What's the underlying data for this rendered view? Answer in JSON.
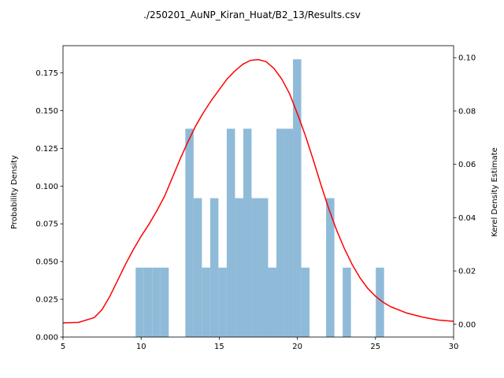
{
  "chart_data": {
    "type": "bar",
    "title": "./250201_AuNP_Kiran_Huat/B2_13/Results.csv",
    "xlabel": "",
    "ylabel": "Probability Density",
    "y2label": "Kerel Density Estimate",
    "xlim": [
      5,
      30
    ],
    "ylim": [
      0,
      0.193
    ],
    "y2lim": [
      -0.0048,
      0.1045
    ],
    "x_ticks": [
      5,
      10,
      15,
      20,
      25,
      30
    ],
    "y_ticks": [
      0.0,
      0.025,
      0.05,
      0.075,
      0.1,
      0.125,
      0.15,
      0.175
    ],
    "y_tick_labels": [
      "0.000",
      "0.025",
      "0.050",
      "0.075",
      "0.100",
      "0.125",
      "0.150",
      "0.175"
    ],
    "y2_ticks": [
      0.0,
      0.02,
      0.04,
      0.06,
      0.08,
      0.1
    ],
    "y2_tick_labels": [
      "0.00",
      "0.02",
      "0.04",
      "0.06",
      "0.08",
      "0.10"
    ],
    "grid": false,
    "histogram": {
      "color": "#8fbbd9",
      "bins": [
        {
          "x0": 9.65,
          "x1": 10.18,
          "y": 0.046
        },
        {
          "x0": 10.18,
          "x1": 10.71,
          "y": 0.046
        },
        {
          "x0": 10.71,
          "x1": 11.24,
          "y": 0.046
        },
        {
          "x0": 11.24,
          "x1": 11.77,
          "y": 0.046
        },
        {
          "x0": 12.83,
          "x1": 13.36,
          "y": 0.138
        },
        {
          "x0": 13.36,
          "x1": 13.89,
          "y": 0.092
        },
        {
          "x0": 13.89,
          "x1": 14.42,
          "y": 0.046
        },
        {
          "x0": 14.42,
          "x1": 14.95,
          "y": 0.092
        },
        {
          "x0": 14.95,
          "x1": 15.48,
          "y": 0.046
        },
        {
          "x0": 15.48,
          "x1": 16.01,
          "y": 0.138
        },
        {
          "x0": 16.01,
          "x1": 16.54,
          "y": 0.092
        },
        {
          "x0": 16.54,
          "x1": 17.07,
          "y": 0.138
        },
        {
          "x0": 17.07,
          "x1": 17.6,
          "y": 0.092
        },
        {
          "x0": 17.6,
          "x1": 18.13,
          "y": 0.092
        },
        {
          "x0": 18.13,
          "x1": 18.66,
          "y": 0.046
        },
        {
          "x0": 18.66,
          "x1": 19.19,
          "y": 0.138
        },
        {
          "x0": 19.19,
          "x1": 19.72,
          "y": 0.138
        },
        {
          "x0": 19.72,
          "x1": 20.25,
          "y": 0.184
        },
        {
          "x0": 20.25,
          "x1": 20.78,
          "y": 0.046
        },
        {
          "x0": 21.84,
          "x1": 22.37,
          "y": 0.092
        },
        {
          "x0": 22.9,
          "x1": 23.43,
          "y": 0.046
        },
        {
          "x0": 25.02,
          "x1": 25.55,
          "y": 0.046
        }
      ]
    },
    "kde": {
      "color": "#ff0000",
      "axis": "right",
      "x": [
        5,
        6,
        7,
        7.5,
        8,
        8.5,
        9,
        9.5,
        10,
        10.5,
        11,
        11.5,
        12,
        12.5,
        13,
        13.5,
        14,
        14.5,
        15,
        15.5,
        16,
        16.5,
        17,
        17.5,
        18,
        18.5,
        19,
        19.5,
        20,
        20.5,
        21,
        21.5,
        22,
        22.5,
        23,
        23.5,
        24,
        24.5,
        25,
        25.5,
        26,
        27,
        28,
        29,
        30
      ],
      "y": [
        0.0005,
        0.0007,
        0.0025,
        0.0055,
        0.0105,
        0.0165,
        0.0225,
        0.028,
        0.033,
        0.0375,
        0.0425,
        0.048,
        0.055,
        0.062,
        0.0685,
        0.0745,
        0.0795,
        0.084,
        0.088,
        0.092,
        0.095,
        0.0975,
        0.099,
        0.0993,
        0.0985,
        0.096,
        0.092,
        0.0865,
        0.079,
        0.071,
        0.062,
        0.0525,
        0.0435,
        0.0355,
        0.0285,
        0.0225,
        0.0175,
        0.0135,
        0.0105,
        0.0082,
        0.0065,
        0.0042,
        0.0027,
        0.0016,
        0.0011
      ]
    }
  }
}
